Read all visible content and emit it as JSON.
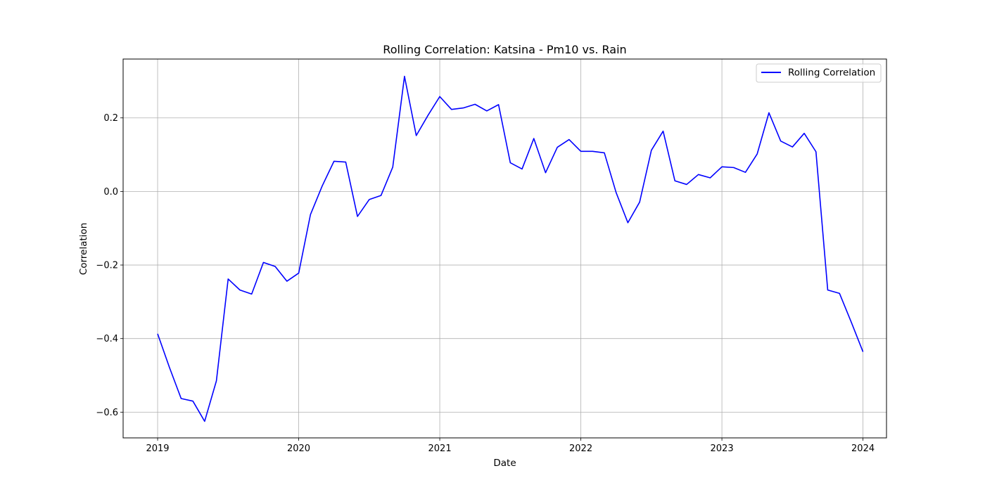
{
  "chart_data": {
    "type": "line",
    "title": "Rolling Correlation: Katsina - Pm10 vs. Rain",
    "xlabel": "Date",
    "ylabel": "Correlation",
    "xlim": [
      "2018-10-03",
      "2024-03-01"
    ],
    "ylim": [
      -0.67,
      0.36
    ],
    "x_ticks": [
      "2019",
      "2020",
      "2021",
      "2022",
      "2023",
      "2024"
    ],
    "y_ticks": [
      "−0.6",
      "−0.4",
      "−0.2",
      "0.0",
      "0.2"
    ],
    "grid": true,
    "legend_position": "top-right",
    "series": [
      {
        "name": "Rolling Correlation",
        "color": "#0000ff",
        "x": [
          "2019-01",
          "2019-02",
          "2019-03",
          "2019-04",
          "2019-05",
          "2019-06",
          "2019-07",
          "2019-08",
          "2019-09",
          "2019-10",
          "2019-11",
          "2019-12",
          "2020-01",
          "2020-02",
          "2020-03",
          "2020-04",
          "2020-05",
          "2020-06",
          "2020-07",
          "2020-08",
          "2020-09",
          "2020-10",
          "2020-11",
          "2020-12",
          "2021-01",
          "2021-02",
          "2021-03",
          "2021-04",
          "2021-05",
          "2021-06",
          "2021-07",
          "2021-08",
          "2021-09",
          "2021-10",
          "2021-11",
          "2021-12",
          "2022-01",
          "2022-02",
          "2022-03",
          "2022-04",
          "2022-05",
          "2022-06",
          "2022-07",
          "2022-08",
          "2022-09",
          "2022-10",
          "2022-11",
          "2022-12",
          "2023-01",
          "2023-02",
          "2023-03",
          "2023-04",
          "2023-05",
          "2023-06",
          "2023-07",
          "2023-08",
          "2023-09",
          "2023-10",
          "2023-11",
          "2023-12",
          "2024-01"
        ],
        "y": [
          -0.387,
          -0.478,
          -0.563,
          -0.57,
          -0.625,
          -0.515,
          -0.238,
          -0.268,
          -0.279,
          -0.193,
          -0.204,
          -0.244,
          -0.222,
          -0.063,
          0.015,
          0.082,
          0.08,
          -0.068,
          -0.022,
          -0.011,
          0.066,
          0.313,
          0.152,
          0.207,
          0.258,
          0.223,
          0.227,
          0.237,
          0.219,
          0.236,
          0.078,
          0.061,
          0.144,
          0.051,
          0.12,
          0.141,
          0.109,
          0.109,
          0.105,
          -0.003,
          -0.085,
          -0.029,
          0.112,
          0.164,
          0.029,
          0.019,
          0.046,
          0.037,
          0.067,
          0.065,
          0.052,
          0.102,
          0.214,
          0.137,
          0.121,
          0.158,
          0.108,
          -0.268,
          -0.277,
          -0.355,
          -0.436
        ]
      }
    ]
  }
}
